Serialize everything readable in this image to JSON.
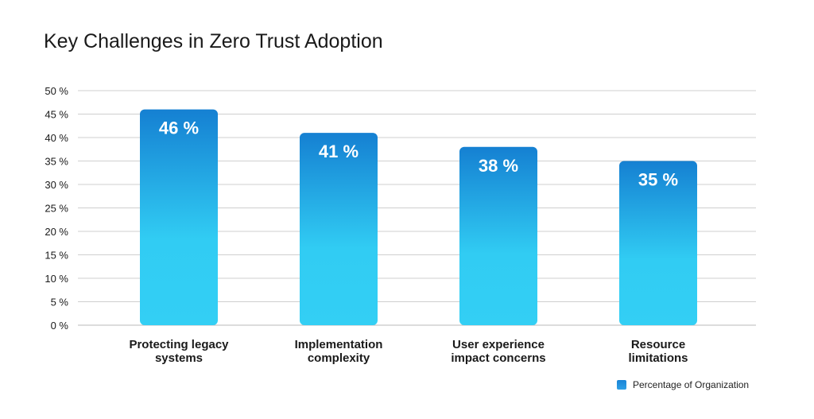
{
  "chart_data": {
    "type": "bar",
    "title": "Key Challenges in Zero Trust Adoption",
    "categories": [
      [
        "Protecting legacy",
        "systems"
      ],
      [
        "Implementation",
        "complexity"
      ],
      [
        "User experience",
        "impact concerns"
      ],
      [
        "Resource",
        "limitations"
      ]
    ],
    "values": [
      46,
      41,
      38,
      35
    ],
    "value_labels": [
      "46 %",
      "41 %",
      "38 %",
      "35 %"
    ],
    "ylim": [
      0,
      50
    ],
    "yticks": [
      0,
      5,
      10,
      15,
      20,
      25,
      30,
      35,
      40,
      45,
      50
    ],
    "ytick_labels": [
      "0 %",
      "5 %",
      "10 %",
      "15 %",
      "20 %",
      "25 %",
      "30 %",
      "35 %",
      "40 %",
      "45 %",
      "50 %"
    ],
    "xlabel": "",
    "ylabel": "",
    "grid": true,
    "legend": {
      "position": "bottom-right",
      "entries": [
        "Percentage of Organization"
      ]
    },
    "colors": {
      "bar_top": "#1580d2",
      "bar_bottom": "#33cff4",
      "grid": "#cfcfcf",
      "text": "#1a1a1a"
    }
  }
}
